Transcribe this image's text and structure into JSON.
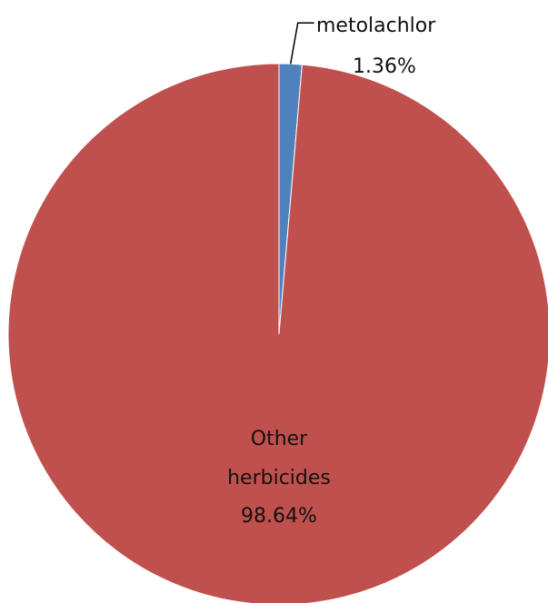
{
  "chart_data": {
    "type": "pie",
    "title": "",
    "slices": [
      {
        "name": "metolachlor",
        "value": 1.36,
        "label": "1.36%",
        "color": "#4F81BD"
      },
      {
        "name": "Other herbicides",
        "value": 98.64,
        "label": "98.64%",
        "color": "#C0504D"
      }
    ],
    "legend": "none"
  }
}
